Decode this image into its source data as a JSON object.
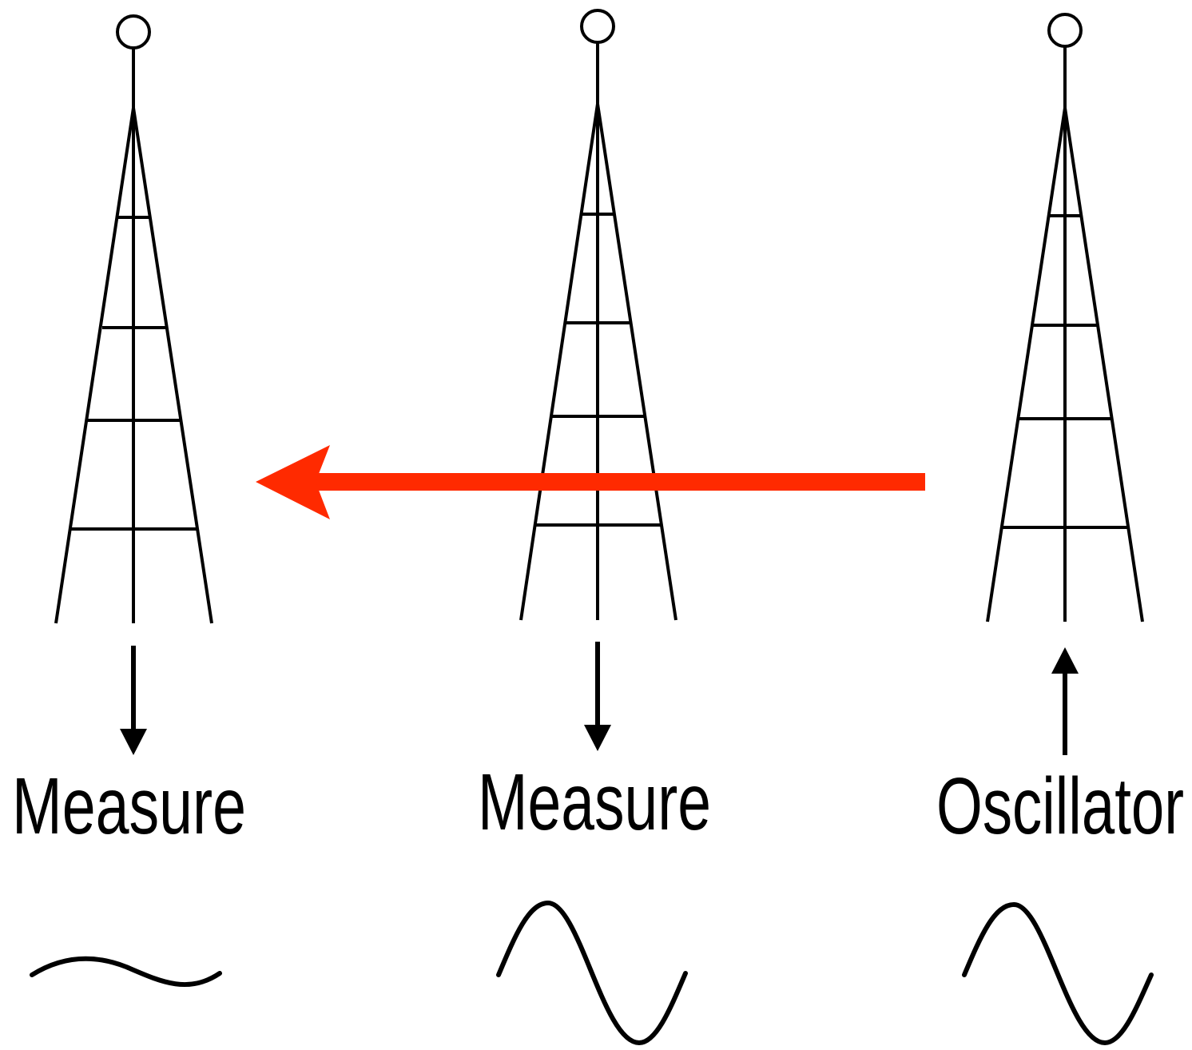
{
  "nodes": [
    {
      "label": "Measure"
    },
    {
      "label": "Measure"
    },
    {
      "label": "Oscillator"
    }
  ]
}
